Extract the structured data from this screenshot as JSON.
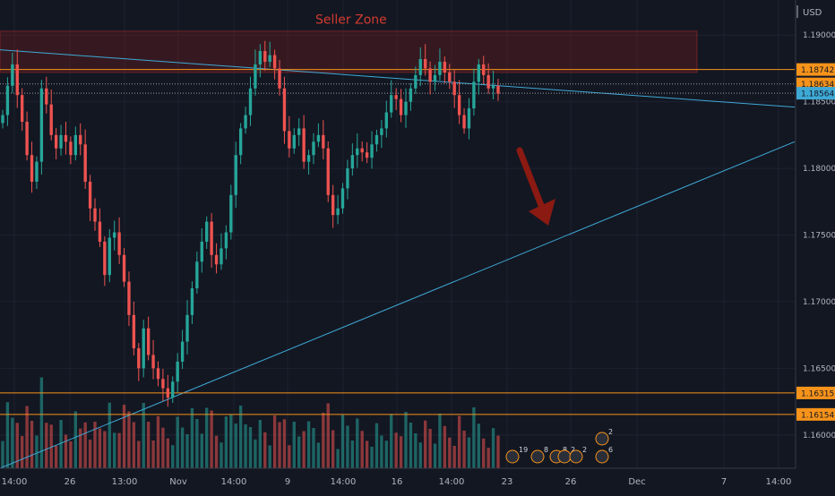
{
  "chart_data": {
    "type": "candlestick",
    "currency_label": "USD",
    "annotation_text": "Seller Zone",
    "ylim": [
      1.1575,
      1.1925
    ],
    "y_ticks": [
      1.16,
      1.165,
      1.17,
      1.175,
      1.18,
      1.185,
      1.19
    ],
    "y_tick_labels": [
      "1.16000",
      "1.16500",
      "1.17000",
      "1.17500",
      "1.18000",
      "1.18500",
      "1.19000"
    ],
    "x_tick_labels": [
      "14:00",
      "26",
      "13:00",
      "Nov",
      "14:00",
      "9",
      "14:00",
      "16",
      "14:00",
      "23",
      "26",
      "Dec",
      "7",
      "14:00"
    ],
    "price_levels": [
      {
        "value": 1.18742,
        "label": "1.18742",
        "style": "solid",
        "color": "#f7931a"
      },
      {
        "value": 1.18634,
        "label": "1.18634",
        "style": "dotted",
        "color": "#f7931a"
      },
      {
        "value": 1.18564,
        "label": "1.18564",
        "style": "dotted",
        "color": "#3fa9d6"
      },
      {
        "value": 1.16315,
        "label": "1.16315",
        "style": "solid",
        "color": "#f7931a"
      },
      {
        "value": 1.16154,
        "label": "1.16154",
        "style": "solid",
        "color": "#f7931a"
      }
    ],
    "seller_zone": {
      "from": 1.1872,
      "to": 1.1903
    },
    "upper_trendline": {
      "start": 1.1889,
      "end": 1.1846
    },
    "lower_trendline": {
      "start": 1.1575,
      "end": 1.182
    },
    "event_badges": [
      "19",
      "8",
      "8",
      "2",
      "2",
      "6",
      "2"
    ],
    "close_path": [
      1.184,
      1.1862,
      1.1878,
      1.1855,
      1.1835,
      1.181,
      1.179,
      1.1805,
      1.186,
      1.1848,
      1.1825,
      1.1815,
      1.1825,
      1.182,
      1.181,
      1.1825,
      1.1818,
      1.179,
      1.177,
      1.176,
      1.1745,
      1.172,
      1.1748,
      1.1752,
      1.1735,
      1.1715,
      1.169,
      1.1665,
      1.165,
      1.168,
      1.166,
      1.165,
      1.1642,
      1.1635,
      1.1628,
      1.164,
      1.1655,
      1.167,
      1.169,
      1.171,
      1.173,
      1.1745,
      1.176,
      1.1735,
      1.1728,
      1.174,
      1.1752,
      1.178,
      1.181,
      1.183,
      1.184,
      1.186,
      1.1878,
      1.1888,
      1.188,
      1.1885,
      1.1875,
      1.186,
      1.1828,
      1.1815,
      1.1825,
      1.183,
      1.1805,
      1.181,
      1.182,
      1.1825,
      1.1815,
      1.178,
      1.1765,
      1.177,
      1.1785,
      1.18,
      1.181,
      1.1815,
      1.1812,
      1.1808,
      1.1818,
      1.1825,
      1.183,
      1.1842,
      1.1855,
      1.1852,
      1.184,
      1.185,
      1.186,
      1.187,
      1.1882,
      1.1875,
      1.1865,
      1.187,
      1.188,
      1.1872,
      1.1865,
      1.1855,
      1.184,
      1.183,
      1.1845,
      1.1865,
      1.1878,
      1.187,
      1.186,
      1.1862,
      1.1856
    ]
  }
}
